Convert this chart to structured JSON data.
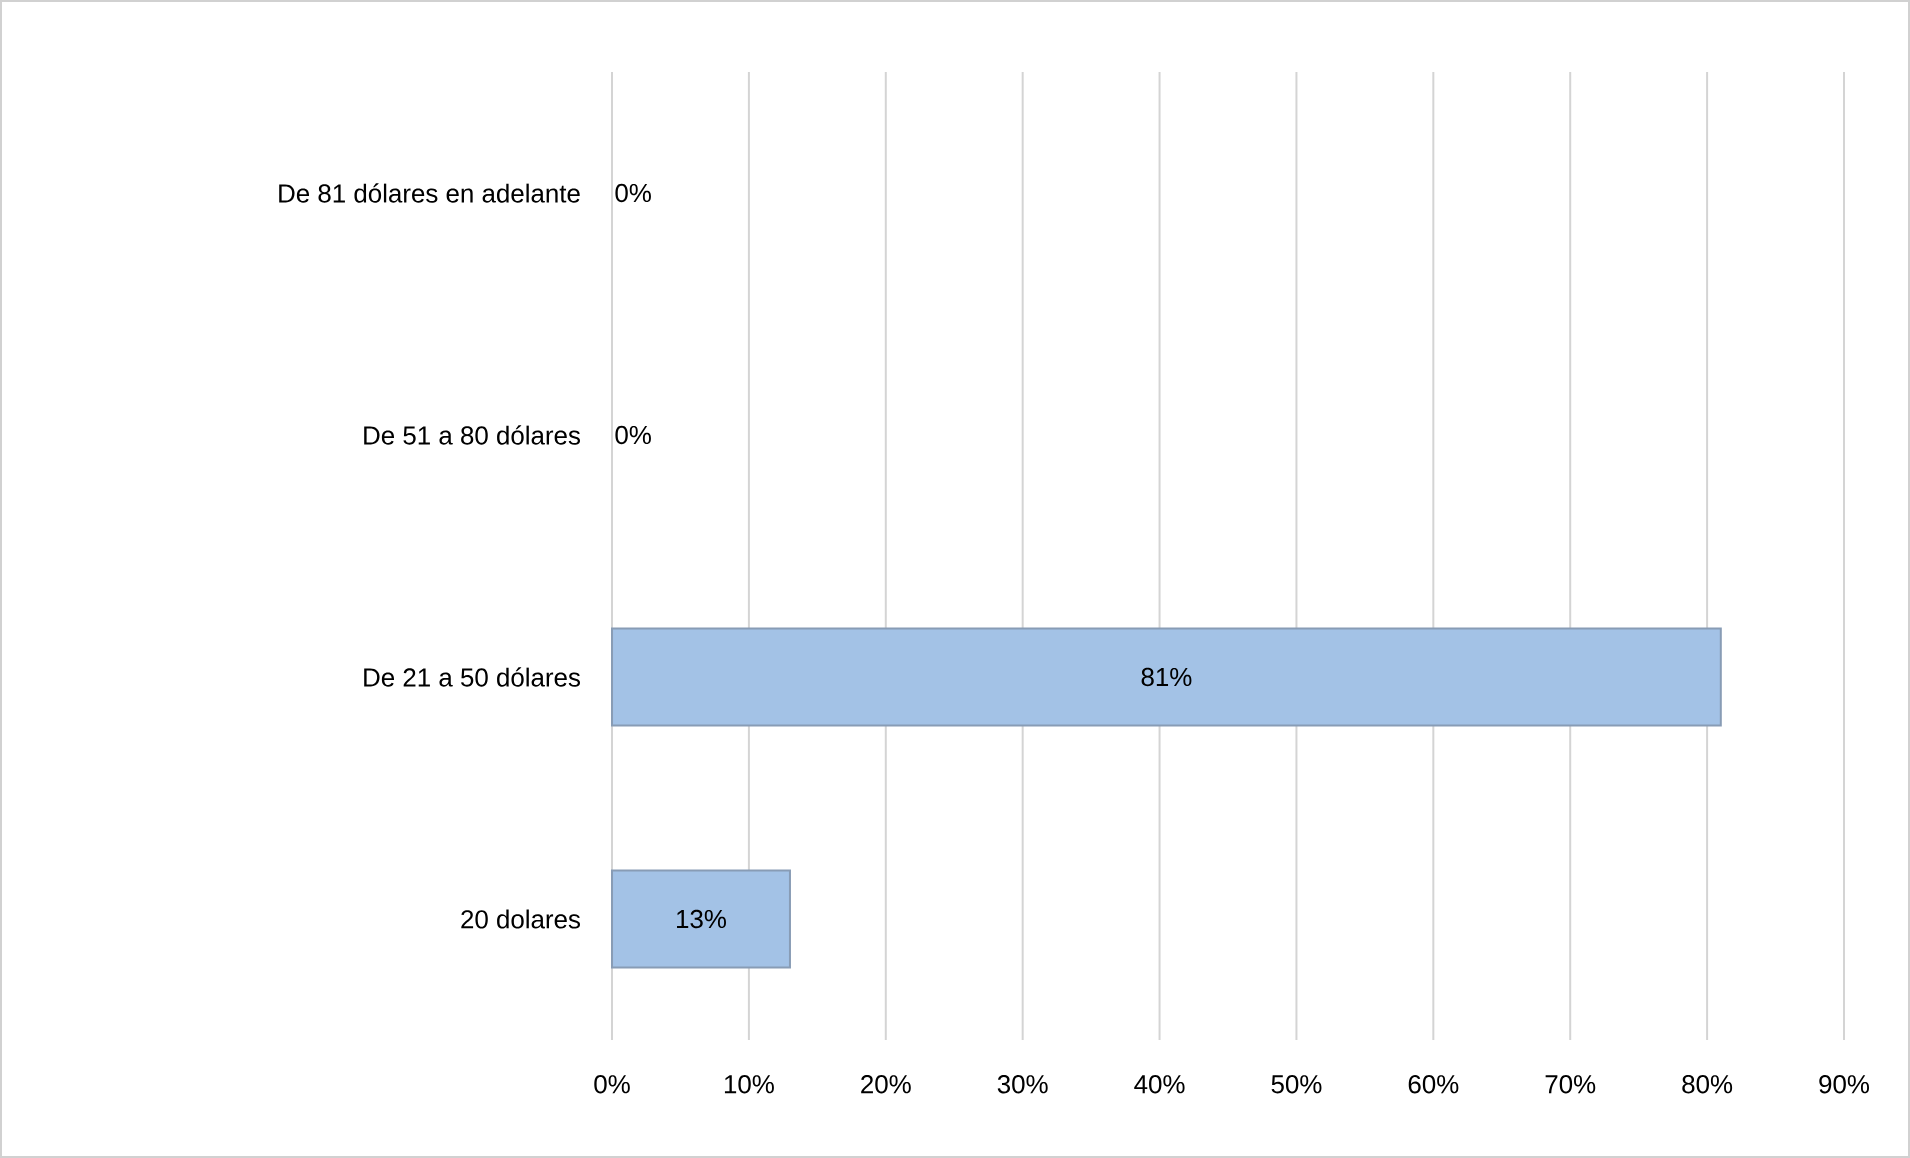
{
  "chart_data": {
    "type": "bar",
    "orientation": "horizontal",
    "categories": [
      "De 81 dólares en adelante",
      "De 51 a 80 dólares",
      "De 21 a 50 dólares",
      "20 dolares"
    ],
    "values": [
      0,
      0,
      81,
      13
    ],
    "value_labels": [
      "0%",
      "0%",
      "81%",
      "13%"
    ],
    "color": "#a3c2e6",
    "xlim": [
      0,
      90
    ],
    "xticks": [
      {
        "value": 0,
        "label": "0%"
      },
      {
        "value": 10,
        "label": "10%"
      },
      {
        "value": 20,
        "label": "20%"
      },
      {
        "value": 30,
        "label": "30%"
      },
      {
        "value": 40,
        "label": "40%"
      },
      {
        "value": 50,
        "label": "50%"
      },
      {
        "value": 60,
        "label": "60%"
      },
      {
        "value": 70,
        "label": "70%"
      },
      {
        "value": 80,
        "label": "80%"
      },
      {
        "value": 90,
        "label": "90%"
      }
    ],
    "grid": "x"
  }
}
